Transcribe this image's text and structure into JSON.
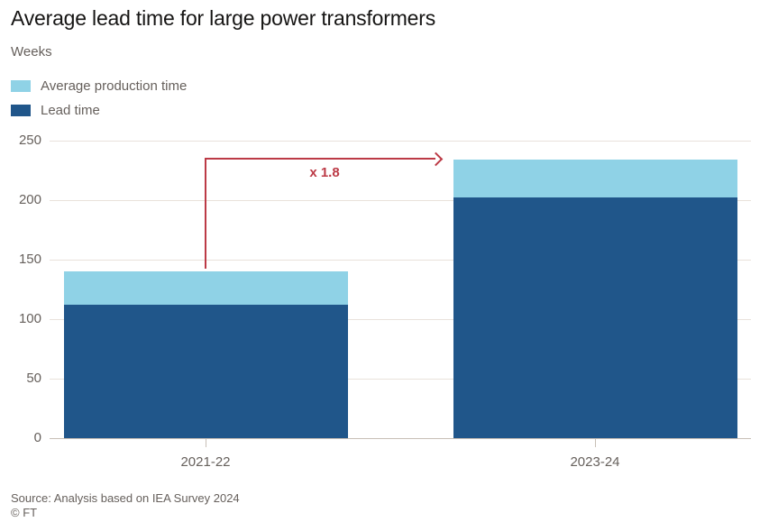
{
  "header": {
    "title": "Average lead time for large power transformers",
    "subtitle": "Weeks"
  },
  "legend": {
    "items": [
      {
        "label": "Average production time",
        "color": "#8fd2e6"
      },
      {
        "label": "Lead time",
        "color": "#20568a"
      }
    ]
  },
  "chart_data": {
    "type": "bar",
    "stacked": true,
    "title": "Average lead time for large power transformers",
    "ylabel": "Weeks",
    "xlabel": "",
    "categories": [
      "2021-22",
      "2023-24"
    ],
    "series": [
      {
        "name": "Average production time",
        "values": [
          28,
          32
        ],
        "color": "#8fd2e6"
      },
      {
        "name": "Lead time",
        "values": [
          112,
          202
        ],
        "color": "#20568a"
      }
    ],
    "stack_totals": [
      140,
      234
    ],
    "ylim": [
      0,
      250
    ],
    "yticks": [
      0,
      50,
      100,
      150,
      200,
      250
    ],
    "grid": "horizontal",
    "legend_position": "top-left",
    "annotation": {
      "text": "x 1.8",
      "color": "#bc3a46",
      "meaning": "lead time multiplied by 1.8 between 2021-22 and 2023-24"
    }
  },
  "footer": {
    "source": "Source: Analysis based on IEA Survey 2024",
    "copyright": "© FT"
  }
}
